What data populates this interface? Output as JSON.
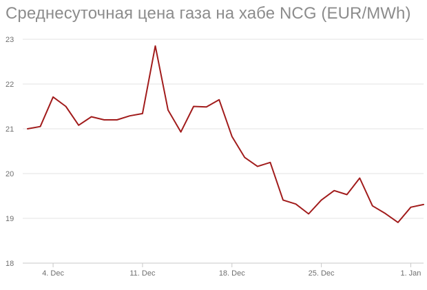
{
  "title": "Среднесуточная цена газа на хабе NCG (EUR/MWh)",
  "colors": {
    "line": "#a11b1b",
    "grid": "#e3e3e3",
    "axis": "#c8c8c8",
    "title": "#8c8c8c",
    "tick": "#6e6e6e"
  },
  "chart_data": {
    "type": "line",
    "title": "Среднесуточная цена газа на хабе NCG (EUR/MWh)",
    "xlabel": "",
    "ylabel": "",
    "ylim": [
      18,
      23
    ],
    "yticks": [
      18,
      19,
      20,
      21,
      22,
      23
    ],
    "xticks": [
      "4. Dec",
      "11. Dec",
      "18. Dec",
      "25. Dec",
      "1. Jan"
    ],
    "x": [
      "Dec 2",
      "Dec 3",
      "Dec 4",
      "Dec 5",
      "Dec 6",
      "Dec 7",
      "Dec 8",
      "Dec 9",
      "Dec 10",
      "Dec 11",
      "Dec 12",
      "Dec 13",
      "Dec 14",
      "Dec 15",
      "Dec 16",
      "Dec 17",
      "Dec 18",
      "Dec 19",
      "Dec 20",
      "Dec 21",
      "Dec 22",
      "Dec 23",
      "Dec 24",
      "Dec 25",
      "Dec 26",
      "Dec 27",
      "Dec 28",
      "Dec 29",
      "Dec 30",
      "Dec 31",
      "Jan 1",
      "Jan 2"
    ],
    "series": [
      {
        "values": [
          21.0,
          21.05,
          21.71,
          21.5,
          21.08,
          21.27,
          21.2,
          21.2,
          21.29,
          21.34,
          22.85,
          21.42,
          20.93,
          21.5,
          21.49,
          21.65,
          20.83,
          20.36,
          20.16,
          20.25,
          19.41,
          19.32,
          19.1,
          19.41,
          19.62,
          19.53,
          19.9,
          19.28,
          19.11,
          18.91,
          19.25,
          19.31
        ]
      }
    ],
    "grid": true,
    "legend": "none"
  }
}
